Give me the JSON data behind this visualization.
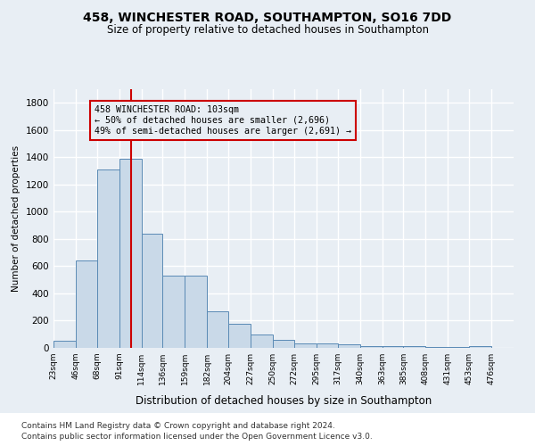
{
  "title": "458, WINCHESTER ROAD, SOUTHAMPTON, SO16 7DD",
  "subtitle": "Size of property relative to detached houses in Southampton",
  "xlabel": "Distribution of detached houses by size in Southampton",
  "ylabel": "Number of detached properties",
  "footnote1": "Contains HM Land Registry data © Crown copyright and database right 2024.",
  "footnote2": "Contains public sector information licensed under the Open Government Licence v3.0.",
  "annotation_line1": "458 WINCHESTER ROAD: 103sqm",
  "annotation_line2": "← 50% of detached houses are smaller (2,696)",
  "annotation_line3": "49% of semi-detached houses are larger (2,691) →",
  "property_size": 103,
  "bar_left_edges": [
    23,
    46,
    68,
    91,
    114,
    136,
    159,
    182,
    204,
    227,
    250,
    272,
    295,
    317,
    340,
    363,
    385,
    408,
    431,
    453
  ],
  "bar_widths": [
    23,
    22,
    23,
    23,
    22,
    23,
    23,
    22,
    23,
    23,
    22,
    23,
    22,
    23,
    23,
    22,
    23,
    23,
    22,
    23
  ],
  "bar_heights": [
    50,
    640,
    1310,
    1390,
    840,
    530,
    530,
    270,
    180,
    100,
    60,
    30,
    30,
    25,
    15,
    10,
    10,
    5,
    5,
    10
  ],
  "bar_color": "#c9d9e8",
  "bar_edge_color": "#5a8ab5",
  "vline_x": 103,
  "vline_color": "#cc0000",
  "annotation_box_color": "#cc0000",
  "ylim": [
    0,
    1900
  ],
  "yticks": [
    0,
    200,
    400,
    600,
    800,
    1000,
    1200,
    1400,
    1600,
    1800
  ],
  "xtick_labels": [
    "23sqm",
    "46sqm",
    "68sqm",
    "91sqm",
    "114sqm",
    "136sqm",
    "159sqm",
    "182sqm",
    "204sqm",
    "227sqm",
    "250sqm",
    "272sqm",
    "295sqm",
    "317sqm",
    "340sqm",
    "363sqm",
    "385sqm",
    "408sqm",
    "431sqm",
    "453sqm",
    "476sqm"
  ],
  "xtick_positions": [
    23,
    46,
    68,
    91,
    114,
    136,
    159,
    182,
    204,
    227,
    250,
    272,
    295,
    317,
    340,
    363,
    385,
    408,
    431,
    453,
    476
  ],
  "background_color": "#e8eef4",
  "plot_bg_color": "#e8eef4",
  "footer_bg_color": "#ffffff",
  "grid_color": "#ffffff"
}
